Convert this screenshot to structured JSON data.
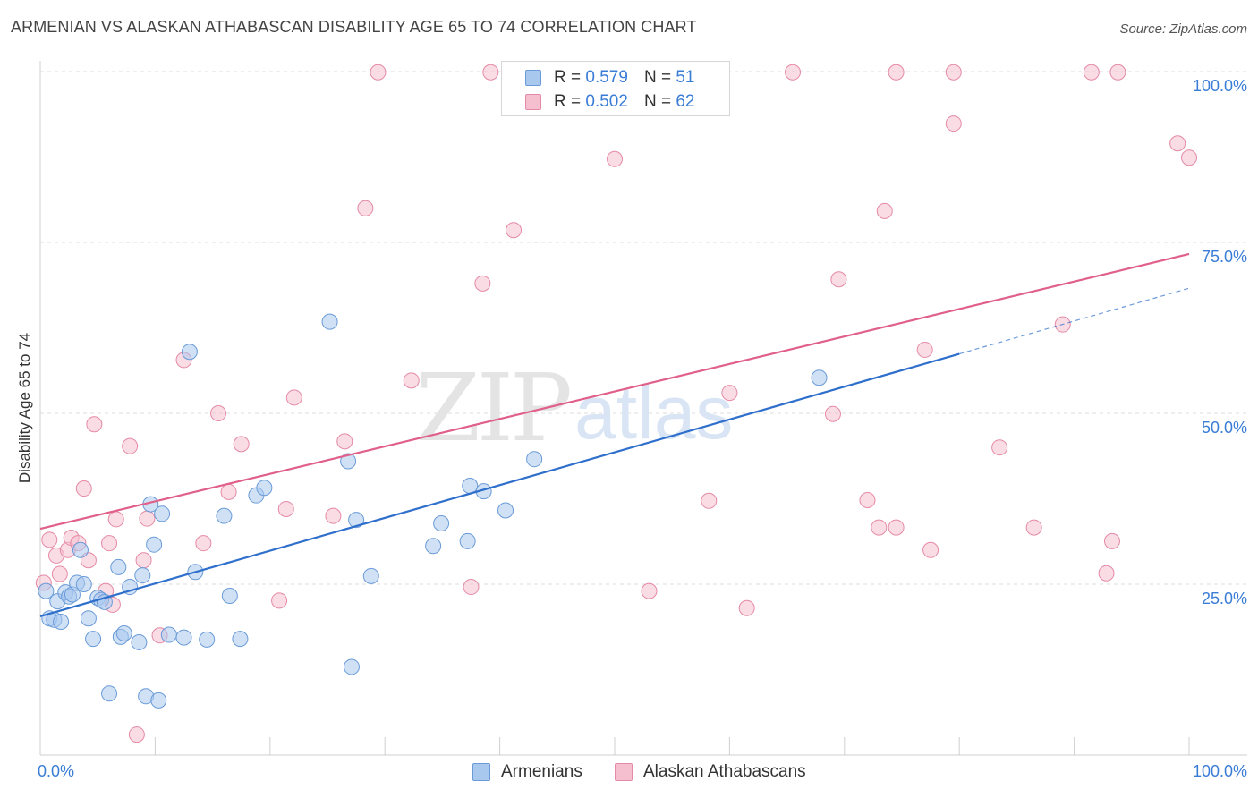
{
  "title": "ARMENIAN VS ALASKAN ATHABASCAN DISABILITY AGE 65 TO 74 CORRELATION CHART",
  "source": "Source: ZipAtlas.com",
  "watermark": {
    "zip": "ZIP",
    "atlas": "atlas"
  },
  "colors": {
    "blue_fill": "#a9c8ee",
    "blue_stroke": "#6a9bd8",
    "blue_line": "#2f6fcc",
    "pink_fill": "#f6bfd0",
    "pink_stroke": "#e58aa6",
    "pink_line": "#e0608a",
    "grid": "#dddddd",
    "axis_text": "#3a7dd6"
  },
  "legend": {
    "r_label": "R =",
    "n_label": "N =",
    "series": [
      {
        "r": "0.579",
        "n": "51"
      },
      {
        "r": "0.502",
        "n": "62"
      }
    ]
  },
  "chart_data": {
    "type": "scatter",
    "title": "ARMENIAN VS ALASKAN ATHABASCAN DISABILITY AGE 65 TO 74 CORRELATION CHART",
    "xlabel": "",
    "ylabel": "Disability Age 65 to 74",
    "xlim": [
      0,
      100
    ],
    "ylim": [
      0,
      100
    ],
    "x_tick_labels": [
      "0.0%",
      "100.0%"
    ],
    "y_tick_labels": [
      "25.0%",
      "50.0%",
      "75.0%",
      "100.0%"
    ],
    "y_ticks": [
      25,
      50,
      75,
      100
    ],
    "grid": true,
    "legend_position": "top-center",
    "series": [
      {
        "name": "Armenians",
        "color": "#a9c8ee",
        "trend": {
          "x0": 0,
          "y0": 20.3,
          "x1": 80,
          "y1": 58.7,
          "dash_to_x": 100,
          "dash_to_y": 68.3
        },
        "points": [
          [
            0.5,
            24.0
          ],
          [
            0.8,
            20.0
          ],
          [
            1.2,
            19.8
          ],
          [
            1.5,
            22.5
          ],
          [
            1.8,
            19.5
          ],
          [
            2.2,
            23.8
          ],
          [
            2.5,
            23.2
          ],
          [
            2.8,
            23.5
          ],
          [
            3.2,
            25.2
          ],
          [
            3.5,
            30.0
          ],
          [
            3.8,
            25.0
          ],
          [
            4.2,
            20.0
          ],
          [
            4.6,
            17.0
          ],
          [
            5.0,
            23.0
          ],
          [
            5.3,
            22.7
          ],
          [
            5.6,
            22.4
          ],
          [
            6.0,
            9.0
          ],
          [
            6.8,
            27.5
          ],
          [
            7.0,
            17.3
          ],
          [
            7.3,
            17.8
          ],
          [
            7.8,
            24.6
          ],
          [
            8.6,
            16.5
          ],
          [
            8.9,
            26.3
          ],
          [
            9.2,
            8.6
          ],
          [
            9.6,
            36.7
          ],
          [
            9.9,
            30.8
          ],
          [
            10.3,
            8.0
          ],
          [
            10.6,
            35.3
          ],
          [
            11.2,
            17.6
          ],
          [
            12.5,
            17.2
          ],
          [
            13.0,
            59.0
          ],
          [
            13.5,
            26.8
          ],
          [
            14.5,
            16.9
          ],
          [
            16.0,
            35.0
          ],
          [
            16.5,
            23.3
          ],
          [
            17.4,
            17.0
          ],
          [
            18.8,
            38.0
          ],
          [
            19.5,
            39.1
          ],
          [
            25.2,
            63.4
          ],
          [
            26.8,
            43.0
          ],
          [
            27.1,
            12.9
          ],
          [
            27.5,
            34.4
          ],
          [
            28.8,
            26.2
          ],
          [
            34.2,
            30.6
          ],
          [
            34.9,
            33.9
          ],
          [
            37.2,
            31.3
          ],
          [
            37.4,
            39.4
          ],
          [
            38.6,
            38.6
          ],
          [
            40.5,
            35.8
          ],
          [
            43.0,
            43.3
          ],
          [
            67.8,
            55.2
          ]
        ]
      },
      {
        "name": "Alaskan Athabascans",
        "color": "#f6bfd0",
        "trend": {
          "x0": 0,
          "y0": 33.1,
          "x1": 100,
          "y1": 73.3
        },
        "points": [
          [
            0.3,
            25.2
          ],
          [
            0.8,
            31.5
          ],
          [
            1.4,
            29.2
          ],
          [
            1.7,
            26.5
          ],
          [
            2.4,
            30.0
          ],
          [
            2.7,
            31.8
          ],
          [
            3.3,
            31.0
          ],
          [
            3.8,
            39.0
          ],
          [
            4.2,
            28.5
          ],
          [
            4.7,
            48.4
          ],
          [
            5.7,
            24.0
          ],
          [
            6.0,
            31.0
          ],
          [
            6.3,
            22.0
          ],
          [
            6.6,
            34.5
          ],
          [
            7.8,
            45.2
          ],
          [
            8.4,
            3.0
          ],
          [
            9.0,
            28.5
          ],
          [
            9.3,
            34.6
          ],
          [
            10.4,
            17.5
          ],
          [
            12.5,
            57.8
          ],
          [
            14.2,
            31.0
          ],
          [
            15.5,
            50.0
          ],
          [
            16.4,
            38.5
          ],
          [
            17.5,
            45.5
          ],
          [
            20.8,
            22.6
          ],
          [
            21.4,
            36.0
          ],
          [
            22.1,
            52.3
          ],
          [
            25.5,
            35.0
          ],
          [
            26.5,
            45.9
          ],
          [
            28.3,
            80.0
          ],
          [
            29.4,
            99.9
          ],
          [
            32.3,
            54.8
          ],
          [
            37.5,
            24.6
          ],
          [
            38.5,
            69.0
          ],
          [
            39.2,
            99.9
          ],
          [
            41.2,
            76.8
          ],
          [
            50.0,
            87.2
          ],
          [
            53.0,
            24.0
          ],
          [
            58.2,
            37.2
          ],
          [
            60.0,
            53.0
          ],
          [
            61.5,
            21.5
          ],
          [
            65.5,
            99.9
          ],
          [
            69.0,
            49.9
          ],
          [
            69.5,
            69.6
          ],
          [
            72.0,
            37.3
          ],
          [
            73.0,
            33.3
          ],
          [
            73.5,
            79.6
          ],
          [
            74.5,
            33.3
          ],
          [
            74.5,
            99.9
          ],
          [
            77.0,
            59.3
          ],
          [
            77.5,
            30.0
          ],
          [
            79.5,
            99.9
          ],
          [
            79.5,
            92.4
          ],
          [
            83.5,
            45.0
          ],
          [
            86.5,
            33.3
          ],
          [
            89.0,
            63.0
          ],
          [
            91.5,
            99.9
          ],
          [
            92.8,
            26.6
          ],
          [
            93.3,
            31.3
          ],
          [
            93.8,
            99.9
          ],
          [
            99.0,
            89.5
          ],
          [
            100.0,
            87.4
          ]
        ]
      }
    ]
  }
}
